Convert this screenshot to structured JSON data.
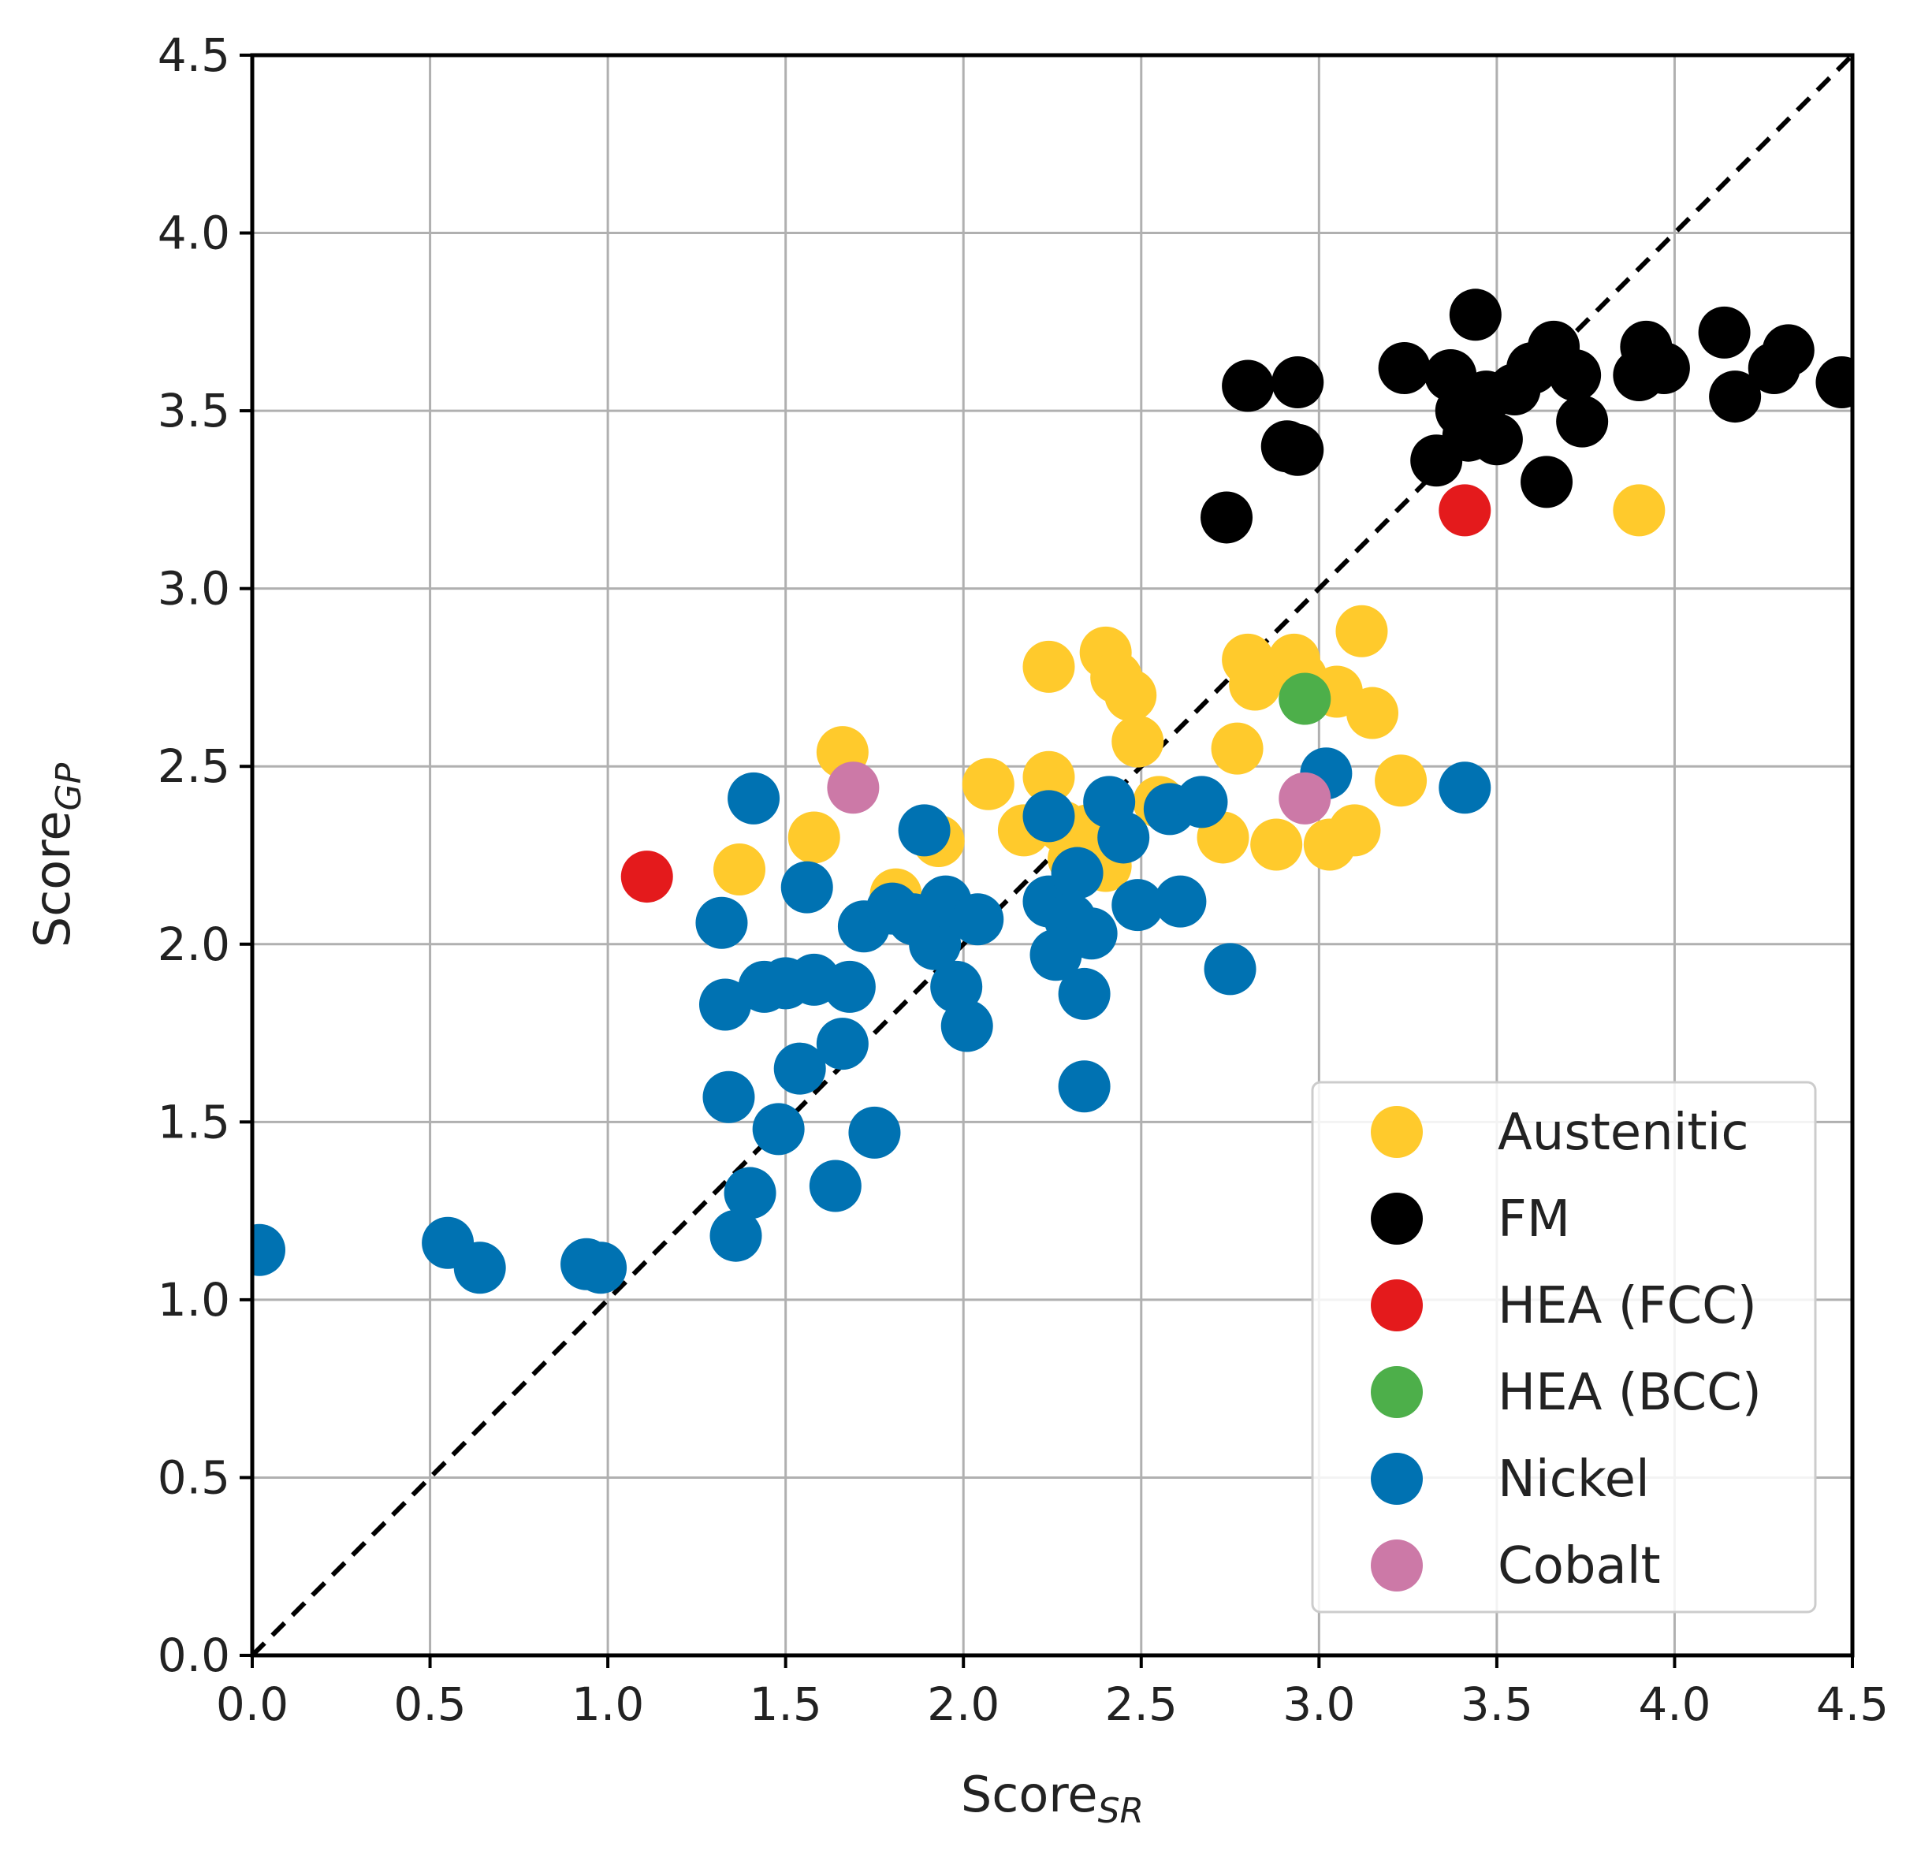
{
  "chart_data": {
    "type": "scatter",
    "title": "",
    "xlabel": {
      "main": "Score",
      "sub": "SR"
    },
    "ylabel": {
      "main": "Score",
      "sub": "GP"
    },
    "xlim": [
      0.0,
      4.5
    ],
    "ylim": [
      0.0,
      4.5
    ],
    "xticks": [
      "0.0",
      "0.5",
      "1.0",
      "1.5",
      "2.0",
      "2.5",
      "3.0",
      "3.5",
      "4.0",
      "4.5"
    ],
    "yticks": [
      "0.0",
      "0.5",
      "1.0",
      "1.5",
      "2.0",
      "2.5",
      "3.0",
      "3.5",
      "4.0",
      "4.5"
    ],
    "grid": true,
    "reference_line": {
      "style": "dashed",
      "color": "#000000",
      "from": [
        0,
        0
      ],
      "to": [
        4.5,
        4.5
      ]
    },
    "legend_position": "lower-right",
    "series": [
      {
        "name": "Austenitic",
        "color": "#FFCA2C",
        "points": [
          [
            1.37,
            2.21
          ],
          [
            1.58,
            2.3
          ],
          [
            1.66,
            2.54
          ],
          [
            1.81,
            2.14
          ],
          [
            1.93,
            2.29
          ],
          [
            2.07,
            2.45
          ],
          [
            2.17,
            2.32
          ],
          [
            2.24,
            2.47
          ],
          [
            2.24,
            2.78
          ],
          [
            2.28,
            2.33
          ],
          [
            2.31,
            2.24
          ],
          [
            2.35,
            2.32
          ],
          [
            2.4,
            2.82
          ],
          [
            2.43,
            2.75
          ],
          [
            2.47,
            2.7
          ],
          [
            2.49,
            2.57
          ],
          [
            2.55,
            2.4
          ],
          [
            2.4,
            2.22
          ],
          [
            2.73,
            2.3
          ],
          [
            2.77,
            2.55
          ],
          [
            2.8,
            2.8
          ],
          [
            2.82,
            2.73
          ],
          [
            2.88,
            2.28
          ],
          [
            2.93,
            2.8
          ],
          [
            2.95,
            2.75
          ],
          [
            3.03,
            2.28
          ],
          [
            3.05,
            2.71
          ],
          [
            3.1,
            2.32
          ],
          [
            3.12,
            2.88
          ],
          [
            3.15,
            2.65
          ],
          [
            3.23,
            2.46
          ],
          [
            3.9,
            3.22
          ]
        ]
      },
      {
        "name": "FM",
        "color": "#000000",
        "points": [
          [
            2.74,
            3.2
          ],
          [
            2.8,
            3.57
          ],
          [
            2.91,
            3.4
          ],
          [
            2.94,
            3.58
          ],
          [
            2.94,
            3.39
          ],
          [
            3.24,
            3.62
          ],
          [
            3.33,
            3.36
          ],
          [
            3.37,
            3.6
          ],
          [
            3.4,
            3.5
          ],
          [
            3.42,
            3.43
          ],
          [
            3.44,
            3.77
          ],
          [
            3.47,
            3.54
          ],
          [
            3.5,
            3.42
          ],
          [
            3.55,
            3.56
          ],
          [
            3.6,
            3.62
          ],
          [
            3.64,
            3.3
          ],
          [
            3.66,
            3.68
          ],
          [
            3.72,
            3.6
          ],
          [
            3.74,
            3.47
          ],
          [
            3.9,
            3.6
          ],
          [
            3.92,
            3.68
          ],
          [
            3.97,
            3.62
          ],
          [
            4.14,
            3.72
          ],
          [
            4.17,
            3.54
          ],
          [
            4.28,
            3.62
          ],
          [
            4.32,
            3.67
          ],
          [
            4.47,
            3.58
          ]
        ]
      },
      {
        "name": "HEA (FCC)",
        "color": "#E41A1C",
        "points": [
          [
            1.11,
            2.19
          ],
          [
            3.41,
            3.22
          ]
        ]
      },
      {
        "name": "HEA (BCC)",
        "color": "#4DAF4A",
        "points": [
          [
            2.96,
            2.69
          ]
        ]
      },
      {
        "name": "Nickel",
        "color": "#0072B2",
        "points": [
          [
            0.02,
            1.14
          ],
          [
            0.55,
            1.16
          ],
          [
            0.64,
            1.09
          ],
          [
            0.94,
            1.1
          ],
          [
            0.98,
            1.09
          ],
          [
            1.32,
            2.06
          ],
          [
            1.33,
            1.83
          ],
          [
            1.34,
            1.57
          ],
          [
            1.36,
            1.18
          ],
          [
            1.4,
            1.3
          ],
          [
            1.41,
            2.41
          ],
          [
            1.44,
            1.88
          ],
          [
            1.48,
            1.48
          ],
          [
            1.5,
            1.89
          ],
          [
            1.54,
            1.65
          ],
          [
            1.56,
            2.16
          ],
          [
            1.58,
            1.9
          ],
          [
            1.64,
            1.32
          ],
          [
            1.66,
            1.72
          ],
          [
            1.68,
            1.88
          ],
          [
            1.72,
            2.05
          ],
          [
            1.75,
            1.47
          ],
          [
            1.8,
            2.1
          ],
          [
            1.86,
            2.07
          ],
          [
            1.89,
            2.32
          ],
          [
            1.92,
            2.0
          ],
          [
            1.95,
            2.12
          ],
          [
            1.98,
            1.88
          ],
          [
            2.01,
            1.77
          ],
          [
            2.04,
            2.07
          ],
          [
            2.24,
            2.12
          ],
          [
            2.24,
            2.36
          ],
          [
            2.26,
            1.97
          ],
          [
            2.3,
            2.07
          ],
          [
            2.32,
            2.2
          ],
          [
            2.34,
            1.86
          ],
          [
            2.34,
            1.6
          ],
          [
            2.36,
            2.03
          ],
          [
            2.41,
            2.4
          ],
          [
            2.45,
            2.3
          ],
          [
            2.49,
            2.11
          ],
          [
            2.58,
            2.38
          ],
          [
            2.61,
            2.12
          ],
          [
            2.67,
            2.4
          ],
          [
            2.75,
            1.93
          ],
          [
            3.02,
            2.48
          ],
          [
            3.41,
            2.44
          ]
        ]
      },
      {
        "name": "Cobalt",
        "color": "#CC79A7",
        "points": [
          [
            1.69,
            2.44
          ],
          [
            2.96,
            2.41
          ]
        ]
      }
    ],
    "legend": [
      {
        "label": "Austenitic",
        "color": "#FFCA2C"
      },
      {
        "label": "FM",
        "color": "#000000"
      },
      {
        "label": "HEA (FCC)",
        "color": "#E41A1C"
      },
      {
        "label": "HEA (BCC)",
        "color": "#4DAF4A"
      },
      {
        "label": "Nickel",
        "color": "#0072B2"
      },
      {
        "label": "Cobalt",
        "color": "#CC79A7"
      }
    ]
  }
}
